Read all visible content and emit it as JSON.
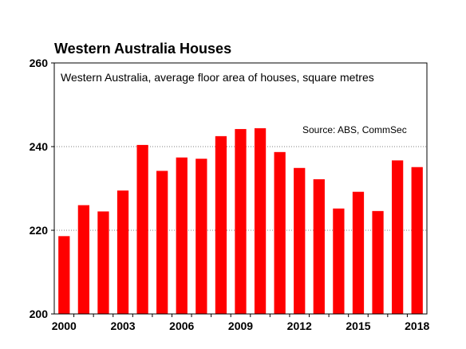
{
  "chart_data": {
    "type": "bar",
    "title": "Western Australia Houses",
    "subtitle": "Western Australia, average floor area of houses, square metres",
    "source": "Source: ABS, CommSec",
    "xlabel": "",
    "ylabel": "",
    "categories": [
      "2000",
      "2001",
      "2002",
      "2003",
      "2004",
      "2005",
      "2006",
      "2007",
      "2008",
      "2009",
      "2010",
      "2011",
      "2012",
      "2013",
      "2014",
      "2015",
      "2016",
      "2017",
      "2018"
    ],
    "x_tick_labels": [
      "2000",
      "2003",
      "2006",
      "2009",
      "2012",
      "2015",
      "2018"
    ],
    "y_tick_labels": [
      "200",
      "220",
      "240",
      "260"
    ],
    "series": [
      {
        "values": [
          218.6,
          226.0,
          224.5,
          229.5,
          240.4,
          234.2,
          237.4,
          237.1,
          242.5,
          244.2,
          244.4,
          238.7,
          234.9,
          232.2,
          225.2,
          229.2,
          224.6,
          236.7,
          235.1
        ],
        "color": "#ff0000"
      }
    ],
    "ylim": [
      200,
      260
    ],
    "grid": "horizontal-dotted",
    "legend": "none"
  }
}
